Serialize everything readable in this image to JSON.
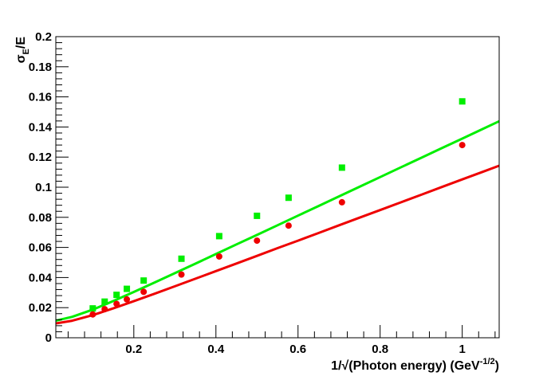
{
  "chart_data": {
    "type": "scatter",
    "xlabel": {
      "prefix": "1/√(Photon energy) (GeV",
      "superscript": "-1/2",
      "suffix": ")"
    },
    "ylabel": {
      "base": "σ",
      "subscript": "E",
      "suffix": "/E"
    },
    "xlim": [
      0.01,
      1.09
    ],
    "ylim": [
      0,
      0.2
    ],
    "x_ticks": [
      "0.2",
      "0.4",
      "0.6",
      "0.8",
      "1"
    ],
    "x_tick_values": [
      0.2,
      0.4,
      0.6,
      0.8,
      1.0
    ],
    "y_ticks": [
      "0",
      "0.02",
      "0.04",
      "0.06",
      "0.08",
      "0.1",
      "0.12",
      "0.14",
      "0.16",
      "0.18",
      "0.2"
    ],
    "y_tick_values": [
      0,
      0.02,
      0.04,
      0.06,
      0.08,
      0.1,
      0.12,
      0.14,
      0.16,
      0.18,
      0.2
    ],
    "grid": false,
    "legend": "none",
    "series": [
      {
        "color": "#00ee00",
        "marker": "square",
        "x": [
          0.1,
          0.129,
          0.158,
          0.183,
          0.224,
          0.316,
          0.408,
          0.5,
          0.577,
          0.707,
          1.0
        ],
        "y": [
          0.0195,
          0.024,
          0.0285,
          0.0325,
          0.038,
          0.0525,
          0.0675,
          0.081,
          0.093,
          0.113,
          0.157
        ],
        "fit_x": [
          0.01,
          0.05,
          0.1,
          0.15,
          0.2,
          0.25,
          0.3,
          0.35,
          0.4,
          0.45,
          0.5,
          0.55,
          0.6,
          0.65,
          0.7,
          0.75,
          0.8,
          0.85,
          0.9,
          0.95,
          1.0,
          1.05,
          1.09
        ],
        "fit_y": [
          0.0113,
          0.0139,
          0.0187,
          0.0244,
          0.0304,
          0.0366,
          0.0429,
          0.0492,
          0.0556,
          0.062,
          0.0683,
          0.0747,
          0.0811,
          0.0875,
          0.0939,
          0.1003,
          0.1067,
          0.1131,
          0.1195,
          0.1259,
          0.1323,
          0.1387,
          0.1438
        ]
      },
      {
        "color": "#ee0000",
        "marker": "circle",
        "x": [
          0.1,
          0.129,
          0.158,
          0.183,
          0.224,
          0.316,
          0.408,
          0.5,
          0.577,
          0.707,
          1.0
        ],
        "y": [
          0.0155,
          0.019,
          0.0225,
          0.0255,
          0.0305,
          0.042,
          0.054,
          0.0645,
          0.0745,
          0.09,
          0.128
        ],
        "fit_x": [
          0.01,
          0.05,
          0.1,
          0.15,
          0.2,
          0.25,
          0.3,
          0.35,
          0.4,
          0.45,
          0.5,
          0.55,
          0.6,
          0.65,
          0.7,
          0.75,
          0.8,
          0.85,
          0.9,
          0.95,
          1.0,
          1.05,
          1.09
        ],
        "fit_y": [
          0.0095,
          0.0113,
          0.015,
          0.0195,
          0.0243,
          0.0292,
          0.0342,
          0.0392,
          0.0443,
          0.0493,
          0.0544,
          0.0595,
          0.0645,
          0.0696,
          0.0747,
          0.0798,
          0.0848,
          0.0899,
          0.095,
          0.1001,
          0.1052,
          0.1102,
          0.1143
        ]
      }
    ]
  }
}
